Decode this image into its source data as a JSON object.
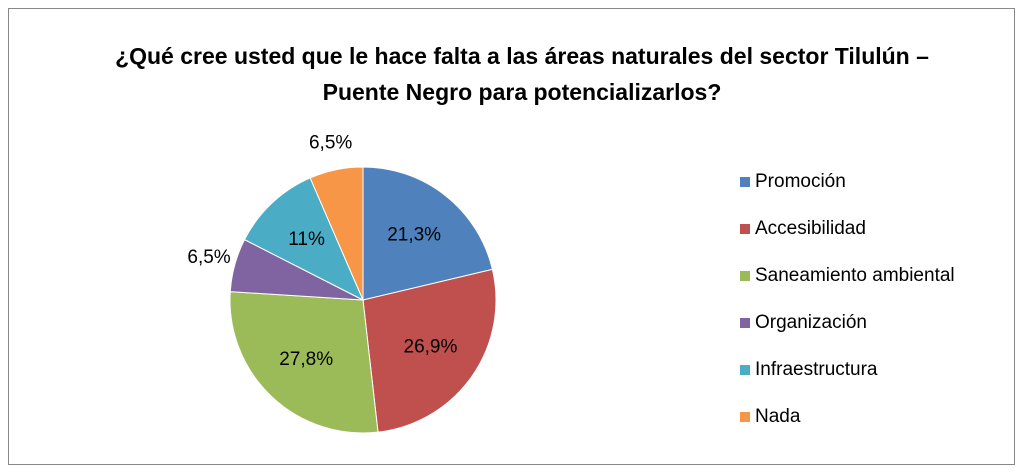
{
  "chart_data": {
    "type": "pie",
    "title": "¿Qué cree usted que le hace falta a las áreas naturales del sector Tilulún – Puente Negro para potencializarlos?",
    "categories": [
      "Promoción",
      "Accesibilidad",
      "Saneamiento ambiental",
      "Organización",
      "Infraestructura",
      "Nada"
    ],
    "values": [
      21.3,
      26.9,
      27.8,
      6.5,
      11,
      6.5
    ],
    "value_labels": [
      "21,3%",
      "26,9%",
      "27,8%",
      "6,5%",
      "11%",
      "6,5%"
    ],
    "colors": [
      "#4f81bd",
      "#c0504d",
      "#9bbb59",
      "#8064a2",
      "#4bacc6",
      "#f79646"
    ],
    "legend": "right"
  }
}
